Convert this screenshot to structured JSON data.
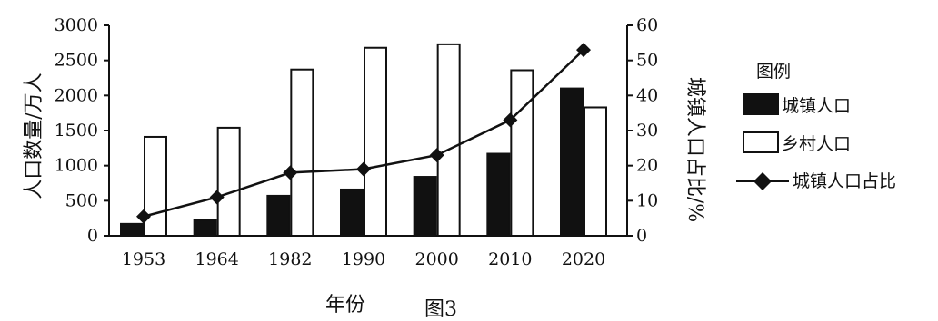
{
  "figure_caption": "图3",
  "chart_data": {
    "type": "bar",
    "categories": [
      "1953",
      "1964",
      "1982",
      "1990",
      "2000",
      "2010",
      "2020"
    ],
    "xlabel": "年份",
    "ylabel_left": "人口数量/万人",
    "ylabel_right": "城镇人口占比/%",
    "ylim_left": [
      0,
      3000
    ],
    "yticks_left": [
      "0",
      "500",
      "1000",
      "1500",
      "2000",
      "2500",
      "3000"
    ],
    "ylim_right": [
      0,
      60
    ],
    "yticks_right": [
      "0",
      "10",
      "20",
      "30",
      "40",
      "50",
      "60"
    ],
    "grid": false,
    "legend_position": "right",
    "legend_title": "图例",
    "series": [
      {
        "name": "城镇人口",
        "kind": "bar",
        "fill": "#111111",
        "axis": "left",
        "values": [
          170,
          230,
          570,
          660,
          840,
          1170,
          2100
        ]
      },
      {
        "name": "乡村人口",
        "kind": "bar",
        "fill": "#ffffff",
        "axis": "left",
        "values": [
          1410,
          1540,
          2370,
          2680,
          2730,
          2360,
          1830
        ]
      },
      {
        "name": "城镇人口占比",
        "kind": "line",
        "marker": "diamond",
        "axis": "right",
        "values": [
          5.5,
          11,
          18,
          19,
          23,
          33,
          53
        ]
      }
    ]
  }
}
